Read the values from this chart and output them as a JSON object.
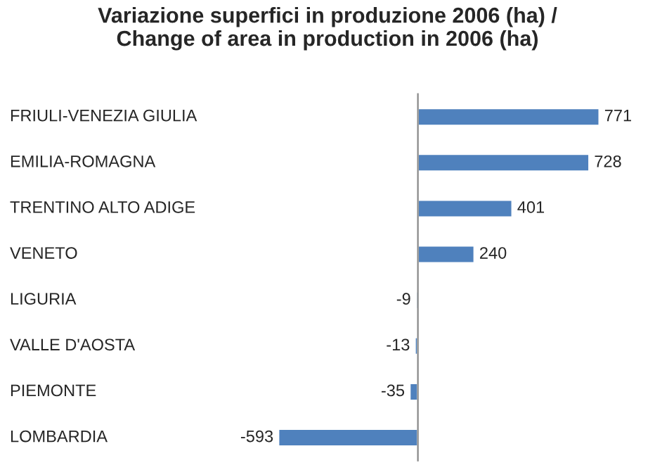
{
  "chart_data": {
    "type": "bar",
    "orientation": "horizontal",
    "title": "Variazione superfici in produzione 2006 (ha) /\nChange of area in production in 2006 (ha)",
    "categories": [
      "FRIULI-VENEZIA GIULIA",
      "EMILIA-ROMAGNA",
      "TRENTINO ALTO ADIGE",
      "VENETO",
      "LIGURIA",
      "VALLE D'AOSTA",
      "PIEMONTE",
      "LOMBARDIA"
    ],
    "values": [
      771,
      728,
      401,
      240,
      -9,
      -13,
      -35,
      -593
    ],
    "color": "#4f81bd",
    "data_labels": true
  }
}
